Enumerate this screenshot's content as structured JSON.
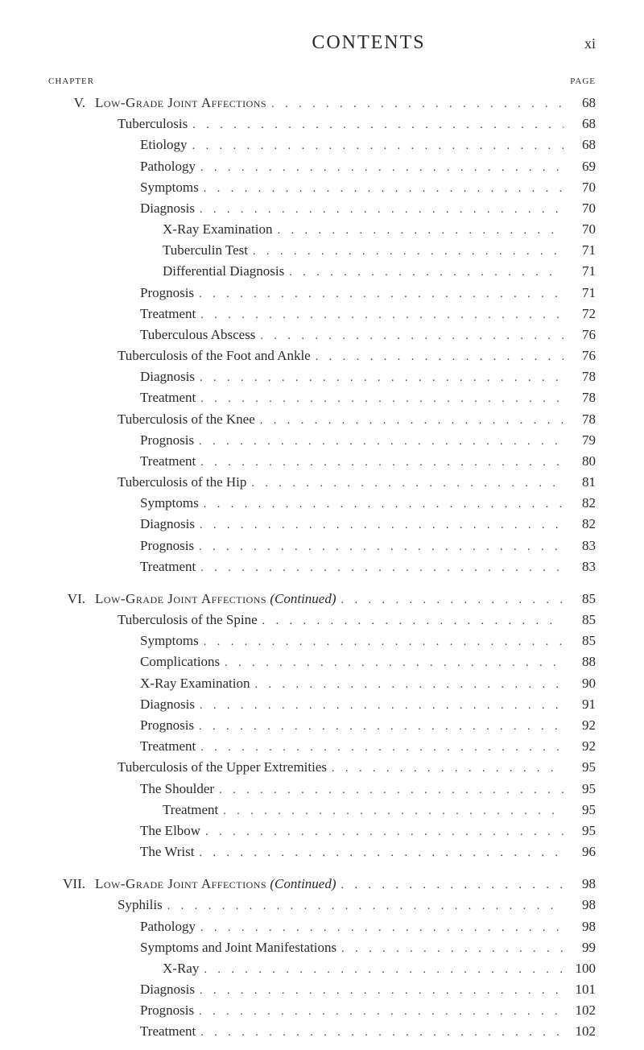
{
  "header": {
    "title": "CONTENTS",
    "page_number": "xi"
  },
  "labels": {
    "chapter": "CHAPTER",
    "page": "PAGE"
  },
  "entries": [
    {
      "chapter": "V.",
      "text": "Low-Grade Joint Affections",
      "page": "68",
      "indent": 0,
      "smallcaps": true
    },
    {
      "text": "Tuberculosis",
      "page": "68",
      "indent": 1
    },
    {
      "text": "Etiology",
      "page": "68",
      "indent": 2
    },
    {
      "text": "Pathology",
      "page": "69",
      "indent": 2
    },
    {
      "text": "Symptoms",
      "page": "70",
      "indent": 2
    },
    {
      "text": "Diagnosis",
      "page": "70",
      "indent": 2
    },
    {
      "text": "X-Ray Examination",
      "page": "70",
      "indent": 3
    },
    {
      "text": "Tuberculin Test",
      "page": "71",
      "indent": 3
    },
    {
      "text": "Differential Diagnosis",
      "page": "71",
      "indent": 3
    },
    {
      "text": "Prognosis",
      "page": "71",
      "indent": 2
    },
    {
      "text": "Treatment",
      "page": "72",
      "indent": 2
    },
    {
      "text": "Tuberculous Abscess",
      "page": "76",
      "indent": 2
    },
    {
      "text": "Tuberculosis of the Foot and Ankle",
      "page": "76",
      "indent": 1
    },
    {
      "text": "Diagnosis",
      "page": "78",
      "indent": 2
    },
    {
      "text": "Treatment",
      "page": "78",
      "indent": 2
    },
    {
      "text": "Tuberculosis of the Knee",
      "page": "78",
      "indent": 1
    },
    {
      "text": "Prognosis",
      "page": "79",
      "indent": 2
    },
    {
      "text": "Treatment",
      "page": "80",
      "indent": 2
    },
    {
      "text": "Tuberculosis of the Hip",
      "page": "81",
      "indent": 1
    },
    {
      "text": "Symptoms",
      "page": "82",
      "indent": 2
    },
    {
      "text": "Diagnosis",
      "page": "82",
      "indent": 2
    },
    {
      "text": "Prognosis",
      "page": "83",
      "indent": 2
    },
    {
      "text": "Treatment",
      "page": "83",
      "indent": 2
    },
    {
      "gap": true
    },
    {
      "chapter": "VI.",
      "text": "Low-Grade Joint Affections",
      "suffix": " (Continued)",
      "page": "85",
      "indent": 0,
      "smallcaps": true
    },
    {
      "text": "Tuberculosis of the Spine",
      "page": "85",
      "indent": 1
    },
    {
      "text": "Symptoms",
      "page": "85",
      "indent": 2
    },
    {
      "text": "Complications",
      "page": "88",
      "indent": 2
    },
    {
      "text": "X-Ray Examination",
      "page": "90",
      "indent": 2
    },
    {
      "text": "Diagnosis",
      "page": "91",
      "indent": 2
    },
    {
      "text": "Prognosis",
      "page": "92",
      "indent": 2
    },
    {
      "text": "Treatment",
      "page": "92",
      "indent": 2
    },
    {
      "text": "Tuberculosis of the Upper Extremities",
      "page": "95",
      "indent": 1
    },
    {
      "text": "The Shoulder",
      "page": "95",
      "indent": 2
    },
    {
      "text": "Treatment",
      "page": "95",
      "indent": 3
    },
    {
      "text": "The Elbow",
      "page": "95",
      "indent": 2
    },
    {
      "text": "The Wrist",
      "page": "96",
      "indent": 2
    },
    {
      "gap": true
    },
    {
      "chapter": "VII.",
      "text": "Low-Grade Joint Affections",
      "suffix": " (Continued)",
      "page": "98",
      "indent": 0,
      "smallcaps": true
    },
    {
      "text": "Syphilis",
      "page": "98",
      "indent": 1
    },
    {
      "text": "Pathology",
      "page": "98",
      "indent": 2
    },
    {
      "text": "Symptoms and Joint Manifestations",
      "page": "99",
      "indent": 2
    },
    {
      "text": "X-Ray",
      "page": "100",
      "indent": 3
    },
    {
      "text": "Diagnosis",
      "page": "101",
      "indent": 2
    },
    {
      "text": "Prognosis",
      "page": "102",
      "indent": 2
    },
    {
      "text": "Treatment",
      "page": "102",
      "indent": 2
    }
  ],
  "dots_fill": ". . . . . . . . . . . . . . . . . . . . . . . . . . . . . . . . . . . . . . . . . ."
}
